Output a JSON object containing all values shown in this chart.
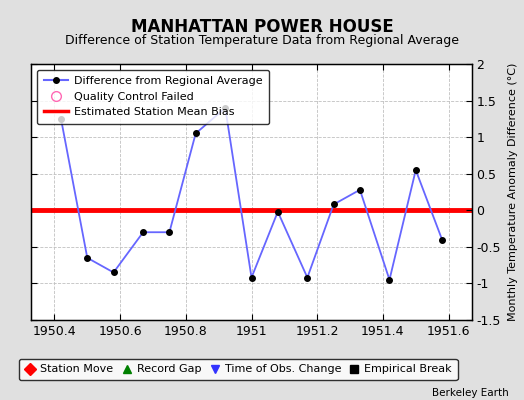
{
  "title": "MANHATTAN POWER HOUSE",
  "subtitle": "Difference of Station Temperature Data from Regional Average",
  "ylabel": "Monthly Temperature Anomaly Difference (°C)",
  "xlim": [
    1950.33,
    1951.67
  ],
  "ylim": [
    -1.5,
    2.0
  ],
  "xticks": [
    1950.4,
    1950.6,
    1950.8,
    1951.0,
    1951.2,
    1951.4,
    1951.6
  ],
  "yticks_right": [
    2.0,
    1.5,
    1.0,
    0.5,
    0.0,
    -0.5,
    -1.0,
    -1.5
  ],
  "ytick_labels_right": [
    "2",
    "1.5",
    "1",
    "0.5",
    "0",
    "-0.5",
    "-1",
    "-1.5"
  ],
  "bias_value": 0.0,
  "line_color": "#6666FF",
  "marker_color": "#000000",
  "bias_color": "#FF0000",
  "background_color": "#E0E0E0",
  "plot_bg_color": "#FFFFFF",
  "grid_color": "#C0C0C0",
  "watermark": "Berkeley Earth",
  "x_data": [
    1950.42,
    1950.5,
    1950.58,
    1950.67,
    1950.75,
    1950.83,
    1950.92,
    1951.0,
    1951.08,
    1951.17,
    1951.25,
    1951.33,
    1951.42,
    1951.5,
    1951.58
  ],
  "y_data": [
    1.25,
    -0.65,
    -0.85,
    -0.3,
    -0.3,
    1.05,
    1.4,
    -0.92,
    -0.02,
    -0.92,
    0.08,
    0.28,
    -0.95,
    0.55,
    -0.4
  ],
  "legend1": [
    {
      "label": "Difference from Regional Average",
      "color": "#6666FF",
      "marker": "o",
      "marker_color": "#000000",
      "lw": 1.5
    },
    {
      "label": "Quality Control Failed",
      "color": "#FF69B4",
      "marker": "o",
      "lw": 0
    },
    {
      "label": "Estimated Station Mean Bias",
      "color": "#FF0000",
      "marker": "None",
      "lw": 2
    }
  ],
  "legend2": [
    {
      "label": "Station Move",
      "color": "#FF0000",
      "marker": "D"
    },
    {
      "label": "Record Gap",
      "color": "#008000",
      "marker": "^"
    },
    {
      "label": "Time of Obs. Change",
      "color": "#3333FF",
      "marker": "v"
    },
    {
      "label": "Empirical Break",
      "color": "#000000",
      "marker": "s"
    }
  ],
  "title_fontsize": 12,
  "subtitle_fontsize": 9,
  "tick_fontsize": 9,
  "legend1_fontsize": 8,
  "legend2_fontsize": 8
}
